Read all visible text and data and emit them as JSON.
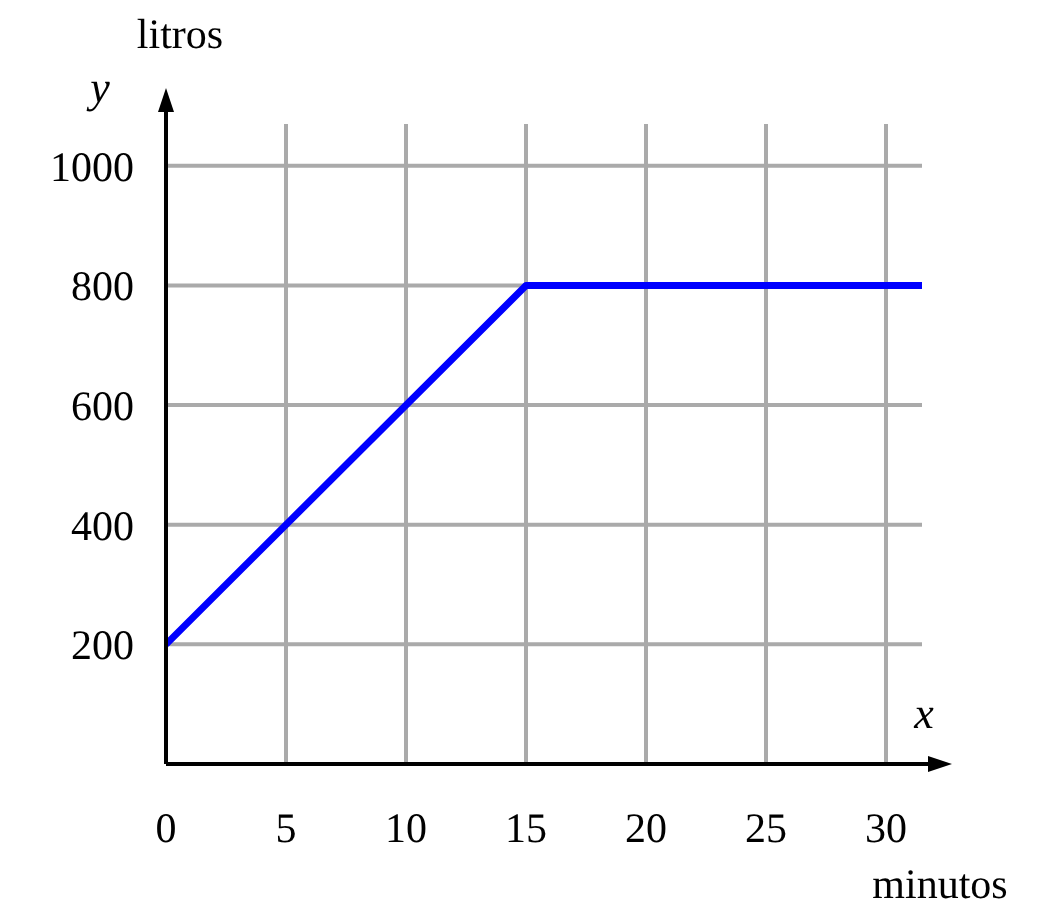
{
  "chart_data": {
    "type": "line",
    "xlabel": "minutos",
    "ylabel": "litros",
    "annotations": [
      "x",
      "y"
    ],
    "x": [
      0,
      15,
      31.5
    ],
    "series": [
      {
        "color": "#0000ff",
        "values": [
          200,
          800,
          800
        ]
      }
    ],
    "xlim": [
      0,
      31.5
    ],
    "xticks": [
      0,
      5,
      10,
      15,
      20,
      25,
      30
    ],
    "ylim": [
      0,
      1070
    ],
    "yticks": [
      200,
      400,
      600,
      800,
      1000
    ],
    "grid": true,
    "marker": "none",
    "line_style": "solid"
  }
}
